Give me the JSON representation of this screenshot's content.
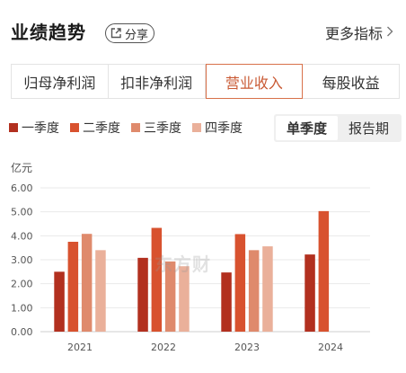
{
  "header": {
    "title": "业绩趋势",
    "share_label": "分享",
    "more_label": "更多指标"
  },
  "tabs": [
    {
      "label": "归母净利润"
    },
    {
      "label": "扣非净利润"
    },
    {
      "label": "营业收入"
    },
    {
      "label": "每股收益"
    }
  ],
  "period": {
    "options": [
      {
        "label": "单季度"
      },
      {
        "label": "报告期"
      }
    ]
  },
  "watermark": "东方财",
  "colors": {
    "accent": "#c95a34",
    "q1": "#b2301f",
    "q2": "#d8522f",
    "q3": "#df8a6c",
    "q4": "#eab09a"
  },
  "chart_data": {
    "type": "bar",
    "unit_label": "亿元",
    "categories": [
      "2021",
      "2022",
      "2023",
      "2024"
    ],
    "ylim": [
      0,
      6
    ],
    "yticks": [
      "6.00",
      "5.00",
      "4.00",
      "3.00",
      "2.00",
      "1.00",
      "0.00"
    ],
    "grid": true,
    "legend_position": "top-left",
    "series": [
      {
        "name": "一季度",
        "values": [
          2.5,
          3.08,
          2.47,
          3.22
        ]
      },
      {
        "name": "二季度",
        "values": [
          3.75,
          4.33,
          4.07,
          5.03
        ]
      },
      {
        "name": "三季度",
        "values": [
          4.08,
          2.93,
          3.4,
          null
        ]
      },
      {
        "name": "四季度",
        "values": [
          3.4,
          2.73,
          3.56,
          null
        ]
      }
    ]
  }
}
